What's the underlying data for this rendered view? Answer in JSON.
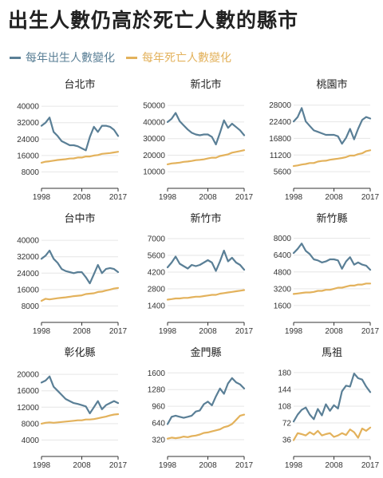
{
  "title": "出生人數仍高於死亡人數的縣市",
  "legend": [
    {
      "name": "每年出生人數變化",
      "color": "#5a7f96"
    },
    {
      "name": "每年死亡人數變化",
      "color": "#e3b25c"
    }
  ],
  "chart_data": [
    {
      "type": "line",
      "title": "台北市",
      "ylim": [
        0,
        42000
      ],
      "yticks": [
        "40000",
        "32000",
        "24000",
        "16000",
        "8000"
      ],
      "ytick_values": [
        40000,
        32000,
        24000,
        16000,
        8000
      ],
      "xticks": [
        "1998",
        "2008",
        "2017"
      ],
      "xtick_values": [
        1998,
        2008,
        2017
      ],
      "x": [
        1998,
        1999,
        2000,
        2001,
        2002,
        2003,
        2004,
        2005,
        2006,
        2007,
        2008,
        2009,
        2010,
        2011,
        2012,
        2013,
        2014,
        2015,
        2016,
        2017
      ],
      "series": [
        {
          "name": "每年出生人數變化",
          "color": "#5a7f96",
          "values": [
            30500,
            32000,
            34500,
            27500,
            25500,
            23000,
            22000,
            21000,
            21000,
            20500,
            19500,
            18500,
            25000,
            30000,
            27500,
            30500,
            30500,
            30000,
            28500,
            25500
          ]
        },
        {
          "name": "每年死亡人數變化",
          "color": "#e3b25c",
          "values": [
            12500,
            13000,
            13200,
            13500,
            13800,
            14000,
            14200,
            14500,
            14600,
            15000,
            15000,
            15500,
            15500,
            16000,
            16200,
            16800,
            17000,
            17200,
            17500,
            17800
          ]
        }
      ]
    },
    {
      "type": "line",
      "title": "新北市",
      "ylim": [
        0,
        52000
      ],
      "yticks": [
        "50000",
        "40000",
        "30000",
        "20000",
        "10000"
      ],
      "ytick_values": [
        50000,
        40000,
        30000,
        20000,
        10000
      ],
      "xticks": [
        "1998",
        "2008",
        "2017"
      ],
      "xtick_values": [
        1998,
        2008,
        2017
      ],
      "x": [
        1998,
        1999,
        2000,
        2001,
        2002,
        2003,
        2004,
        2005,
        2006,
        2007,
        2008,
        2009,
        2010,
        2011,
        2012,
        2013,
        2014,
        2015,
        2016,
        2017
      ],
      "series": [
        {
          "name": "每年出生人數變化",
          "color": "#5a7f96",
          "values": [
            40000,
            42000,
            45500,
            40500,
            38000,
            35500,
            33500,
            32500,
            32000,
            32500,
            32500,
            31000,
            26500,
            33500,
            41000,
            36500,
            39000,
            37000,
            35000,
            32000
          ]
        },
        {
          "name": "每年死亡人數變化",
          "color": "#e3b25c",
          "values": [
            14500,
            15000,
            15200,
            15500,
            16000,
            16200,
            16500,
            17000,
            17200,
            17500,
            18000,
            18500,
            18500,
            19500,
            20000,
            20500,
            21500,
            22000,
            22500,
            23000
          ]
        }
      ]
    },
    {
      "type": "line",
      "title": "桃園市",
      "ylim": [
        0,
        29000
      ],
      "yticks": [
        "28000",
        "22400",
        "16800",
        "11200",
        "5600"
      ],
      "ytick_values": [
        28000,
        22400,
        16800,
        11200,
        5600
      ],
      "xticks": [
        "1998",
        "2008",
        "2017"
      ],
      "xtick_values": [
        1998,
        2008,
        2017
      ],
      "x": [
        1998,
        1999,
        2000,
        2001,
        2002,
        2003,
        2004,
        2005,
        2006,
        2007,
        2008,
        2009,
        2010,
        2011,
        2012,
        2013,
        2014,
        2015,
        2016,
        2017
      ],
      "series": [
        {
          "name": "每年出生人數變化",
          "color": "#5a7f96",
          "values": [
            22500,
            24000,
            27000,
            22500,
            21000,
            19500,
            19000,
            18500,
            18000,
            18000,
            18000,
            17500,
            15000,
            17000,
            20000,
            16500,
            20000,
            23000,
            24000,
            23500
          ]
        },
        {
          "name": "每年死亡人數變化",
          "color": "#e3b25c",
          "values": [
            7500,
            7700,
            8000,
            8200,
            8500,
            8500,
            9000,
            9200,
            9300,
            9600,
            9800,
            10000,
            10200,
            10500,
            11000,
            11000,
            11500,
            11800,
            12500,
            12800
          ]
        }
      ]
    },
    {
      "type": "line",
      "title": "台中市",
      "ylim": [
        0,
        42000
      ],
      "yticks": [
        "40000",
        "32000",
        "24000",
        "16000",
        "8000"
      ],
      "ytick_values": [
        40000,
        32000,
        24000,
        16000,
        8000
      ],
      "xticks": [
        "1998",
        "2008",
        "2017"
      ],
      "xtick_values": [
        1998,
        2008,
        2017
      ],
      "x": [
        1998,
        1999,
        2000,
        2001,
        2002,
        2003,
        2004,
        2005,
        2006,
        2007,
        2008,
        2009,
        2010,
        2011,
        2012,
        2013,
        2014,
        2015,
        2016,
        2017
      ],
      "series": [
        {
          "name": "每年出生人數變化",
          "color": "#5a7f96",
          "values": [
            31000,
            32500,
            35000,
            31000,
            29000,
            26000,
            25000,
            24500,
            24000,
            24500,
            24500,
            22000,
            19000,
            23500,
            28000,
            24000,
            26000,
            26500,
            26000,
            24500
          ]
        },
        {
          "name": "每年死亡人數變化",
          "color": "#e3b25c",
          "values": [
            10500,
            11500,
            11200,
            11500,
            11800,
            12000,
            12200,
            12500,
            12800,
            13000,
            13200,
            13800,
            14000,
            14200,
            14800,
            15000,
            15500,
            16000,
            16500,
            16800
          ]
        }
      ]
    },
    {
      "type": "line",
      "title": "新竹市",
      "ylim": [
        0,
        7200
      ],
      "yticks": [
        "7000",
        "5600",
        "4200",
        "2800",
        "1400"
      ],
      "ytick_values": [
        7000,
        5600,
        4200,
        2800,
        1400
      ],
      "xticks": [
        "1998",
        "2008",
        "2017"
      ],
      "xtick_values": [
        1998,
        2008,
        2017
      ],
      "x": [
        1998,
        1999,
        2000,
        2001,
        2002,
        2003,
        2004,
        2005,
        2006,
        2007,
        2008,
        2009,
        2010,
        2011,
        2012,
        2013,
        2014,
        2015,
        2016,
        2017
      ],
      "series": [
        {
          "name": "每年出生人數變化",
          "color": "#5a7f96",
          "values": [
            4600,
            5000,
            5500,
            4900,
            4700,
            4500,
            4800,
            4700,
            4800,
            5000,
            5200,
            5000,
            4300,
            5100,
            6000,
            5100,
            5400,
            5000,
            4800,
            4400
          ]
        },
        {
          "name": "每年死亡人數變化",
          "color": "#e3b25c",
          "values": [
            1900,
            1950,
            2000,
            2000,
            2050,
            2050,
            2100,
            2150,
            2150,
            2200,
            2250,
            2300,
            2300,
            2400,
            2450,
            2500,
            2550,
            2600,
            2650,
            2700
          ]
        }
      ]
    },
    {
      "type": "line",
      "title": "新竹縣",
      "ylim": [
        0,
        8200
      ],
      "yticks": [
        "8000",
        "6400",
        "4800",
        "3200",
        "1600"
      ],
      "ytick_values": [
        8000,
        6400,
        4800,
        3200,
        1600
      ],
      "xticks": [
        "1998",
        "2008",
        "2017"
      ],
      "xtick_values": [
        1998,
        2008,
        2017
      ],
      "x": [
        1998,
        1999,
        2000,
        2001,
        2002,
        2003,
        2004,
        2005,
        2006,
        2007,
        2008,
        2009,
        2010,
        2011,
        2012,
        2013,
        2014,
        2015,
        2016,
        2017
      ],
      "series": [
        {
          "name": "每年出生人數變化",
          "color": "#5a7f96",
          "values": [
            6600,
            7000,
            7500,
            6800,
            6500,
            6000,
            5900,
            5700,
            5800,
            6000,
            6000,
            5900,
            5100,
            5800,
            6200,
            5500,
            5700,
            5500,
            5400,
            5000
          ]
        },
        {
          "name": "每年死亡人數變化",
          "color": "#e3b25c",
          "values": [
            2700,
            2750,
            2800,
            2850,
            2850,
            2900,
            3000,
            3000,
            3100,
            3100,
            3200,
            3300,
            3300,
            3400,
            3500,
            3500,
            3600,
            3600,
            3700,
            3700
          ]
        }
      ]
    },
    {
      "type": "line",
      "title": "彰化縣",
      "ylim": [
        0,
        21000
      ],
      "yticks": [
        "20000",
        "16000",
        "12000",
        "8000",
        "4000"
      ],
      "ytick_values": [
        20000,
        16000,
        12000,
        8000,
        4000
      ],
      "xticks": [
        "1998",
        "2008",
        "2017"
      ],
      "xtick_values": [
        1998,
        2008,
        2017
      ],
      "x": [
        1998,
        1999,
        2000,
        2001,
        2002,
        2003,
        2004,
        2005,
        2006,
        2007,
        2008,
        2009,
        2010,
        2011,
        2012,
        2013,
        2014,
        2015,
        2016,
        2017
      ],
      "series": [
        {
          "name": "每年出生人數變化",
          "color": "#5a7f96",
          "values": [
            18000,
            18500,
            19500,
            17000,
            16000,
            15000,
            14000,
            13500,
            13000,
            12800,
            12500,
            12200,
            10500,
            12000,
            13500,
            11500,
            12500,
            13000,
            13500,
            13000
          ]
        },
        {
          "name": "每年死亡人數變化",
          "color": "#e3b25c",
          "values": [
            8000,
            8200,
            8300,
            8200,
            8300,
            8400,
            8500,
            8600,
            8700,
            8800,
            8800,
            9000,
            9000,
            9100,
            9300,
            9500,
            9700,
            10000,
            10200,
            10300
          ]
        }
      ]
    },
    {
      "type": "line",
      "title": "金門縣",
      "ylim": [
        0,
        1650
      ],
      "yticks": [
        "1600",
        "1280",
        "960",
        "640",
        "320"
      ],
      "ytick_values": [
        1600,
        1280,
        960,
        640,
        320
      ],
      "xticks": [
        "1998",
        "2008",
        "2017"
      ],
      "xtick_values": [
        1998,
        2008,
        2017
      ],
      "x": [
        1998,
        1999,
        2000,
        2001,
        2002,
        2003,
        2004,
        2005,
        2006,
        2007,
        2008,
        2009,
        2010,
        2011,
        2012,
        2013,
        2014,
        2015,
        2016,
        2017
      ],
      "series": [
        {
          "name": "每年出生人數變化",
          "color": "#5a7f96",
          "values": [
            620,
            760,
            780,
            760,
            740,
            760,
            780,
            860,
            880,
            1000,
            1050,
            980,
            1150,
            1300,
            1200,
            1400,
            1500,
            1420,
            1380,
            1300
          ]
        },
        {
          "name": "每年死亡人數變化",
          "color": "#e3b25c",
          "values": [
            340,
            360,
            350,
            360,
            380,
            370,
            390,
            400,
            420,
            450,
            460,
            480,
            500,
            520,
            560,
            580,
            620,
            700,
            780,
            800
          ]
        }
      ]
    },
    {
      "type": "line",
      "title": "馬祖",
      "ylim": [
        0,
        185
      ],
      "yticks": [
        "180",
        "144",
        "108",
        "72",
        "36"
      ],
      "ytick_values": [
        180,
        144,
        108,
        72,
        36
      ],
      "xticks": [
        "1998",
        "2008",
        "2017"
      ],
      "xtick_values": [
        1998,
        2008,
        2017
      ],
      "x": [
        1998,
        1999,
        2000,
        2001,
        2002,
        2003,
        2004,
        2005,
        2006,
        2007,
        2008,
        2009,
        2010,
        2011,
        2012,
        2013,
        2014,
        2015,
        2016,
        2017
      ],
      "series": [
        {
          "name": "每年出生人數變化",
          "color": "#5a7f96",
          "values": [
            75,
            90,
            100,
            105,
            90,
            80,
            102,
            88,
            112,
            98,
            110,
            103,
            140,
            152,
            150,
            178,
            168,
            165,
            150,
            138
          ]
        },
        {
          "name": "每年死亡人數變化",
          "color": "#e3b25c",
          "values": [
            35,
            50,
            48,
            45,
            52,
            47,
            55,
            45,
            48,
            50,
            42,
            45,
            50,
            46,
            58,
            52,
            40,
            60,
            55,
            62
          ]
        }
      ]
    }
  ]
}
